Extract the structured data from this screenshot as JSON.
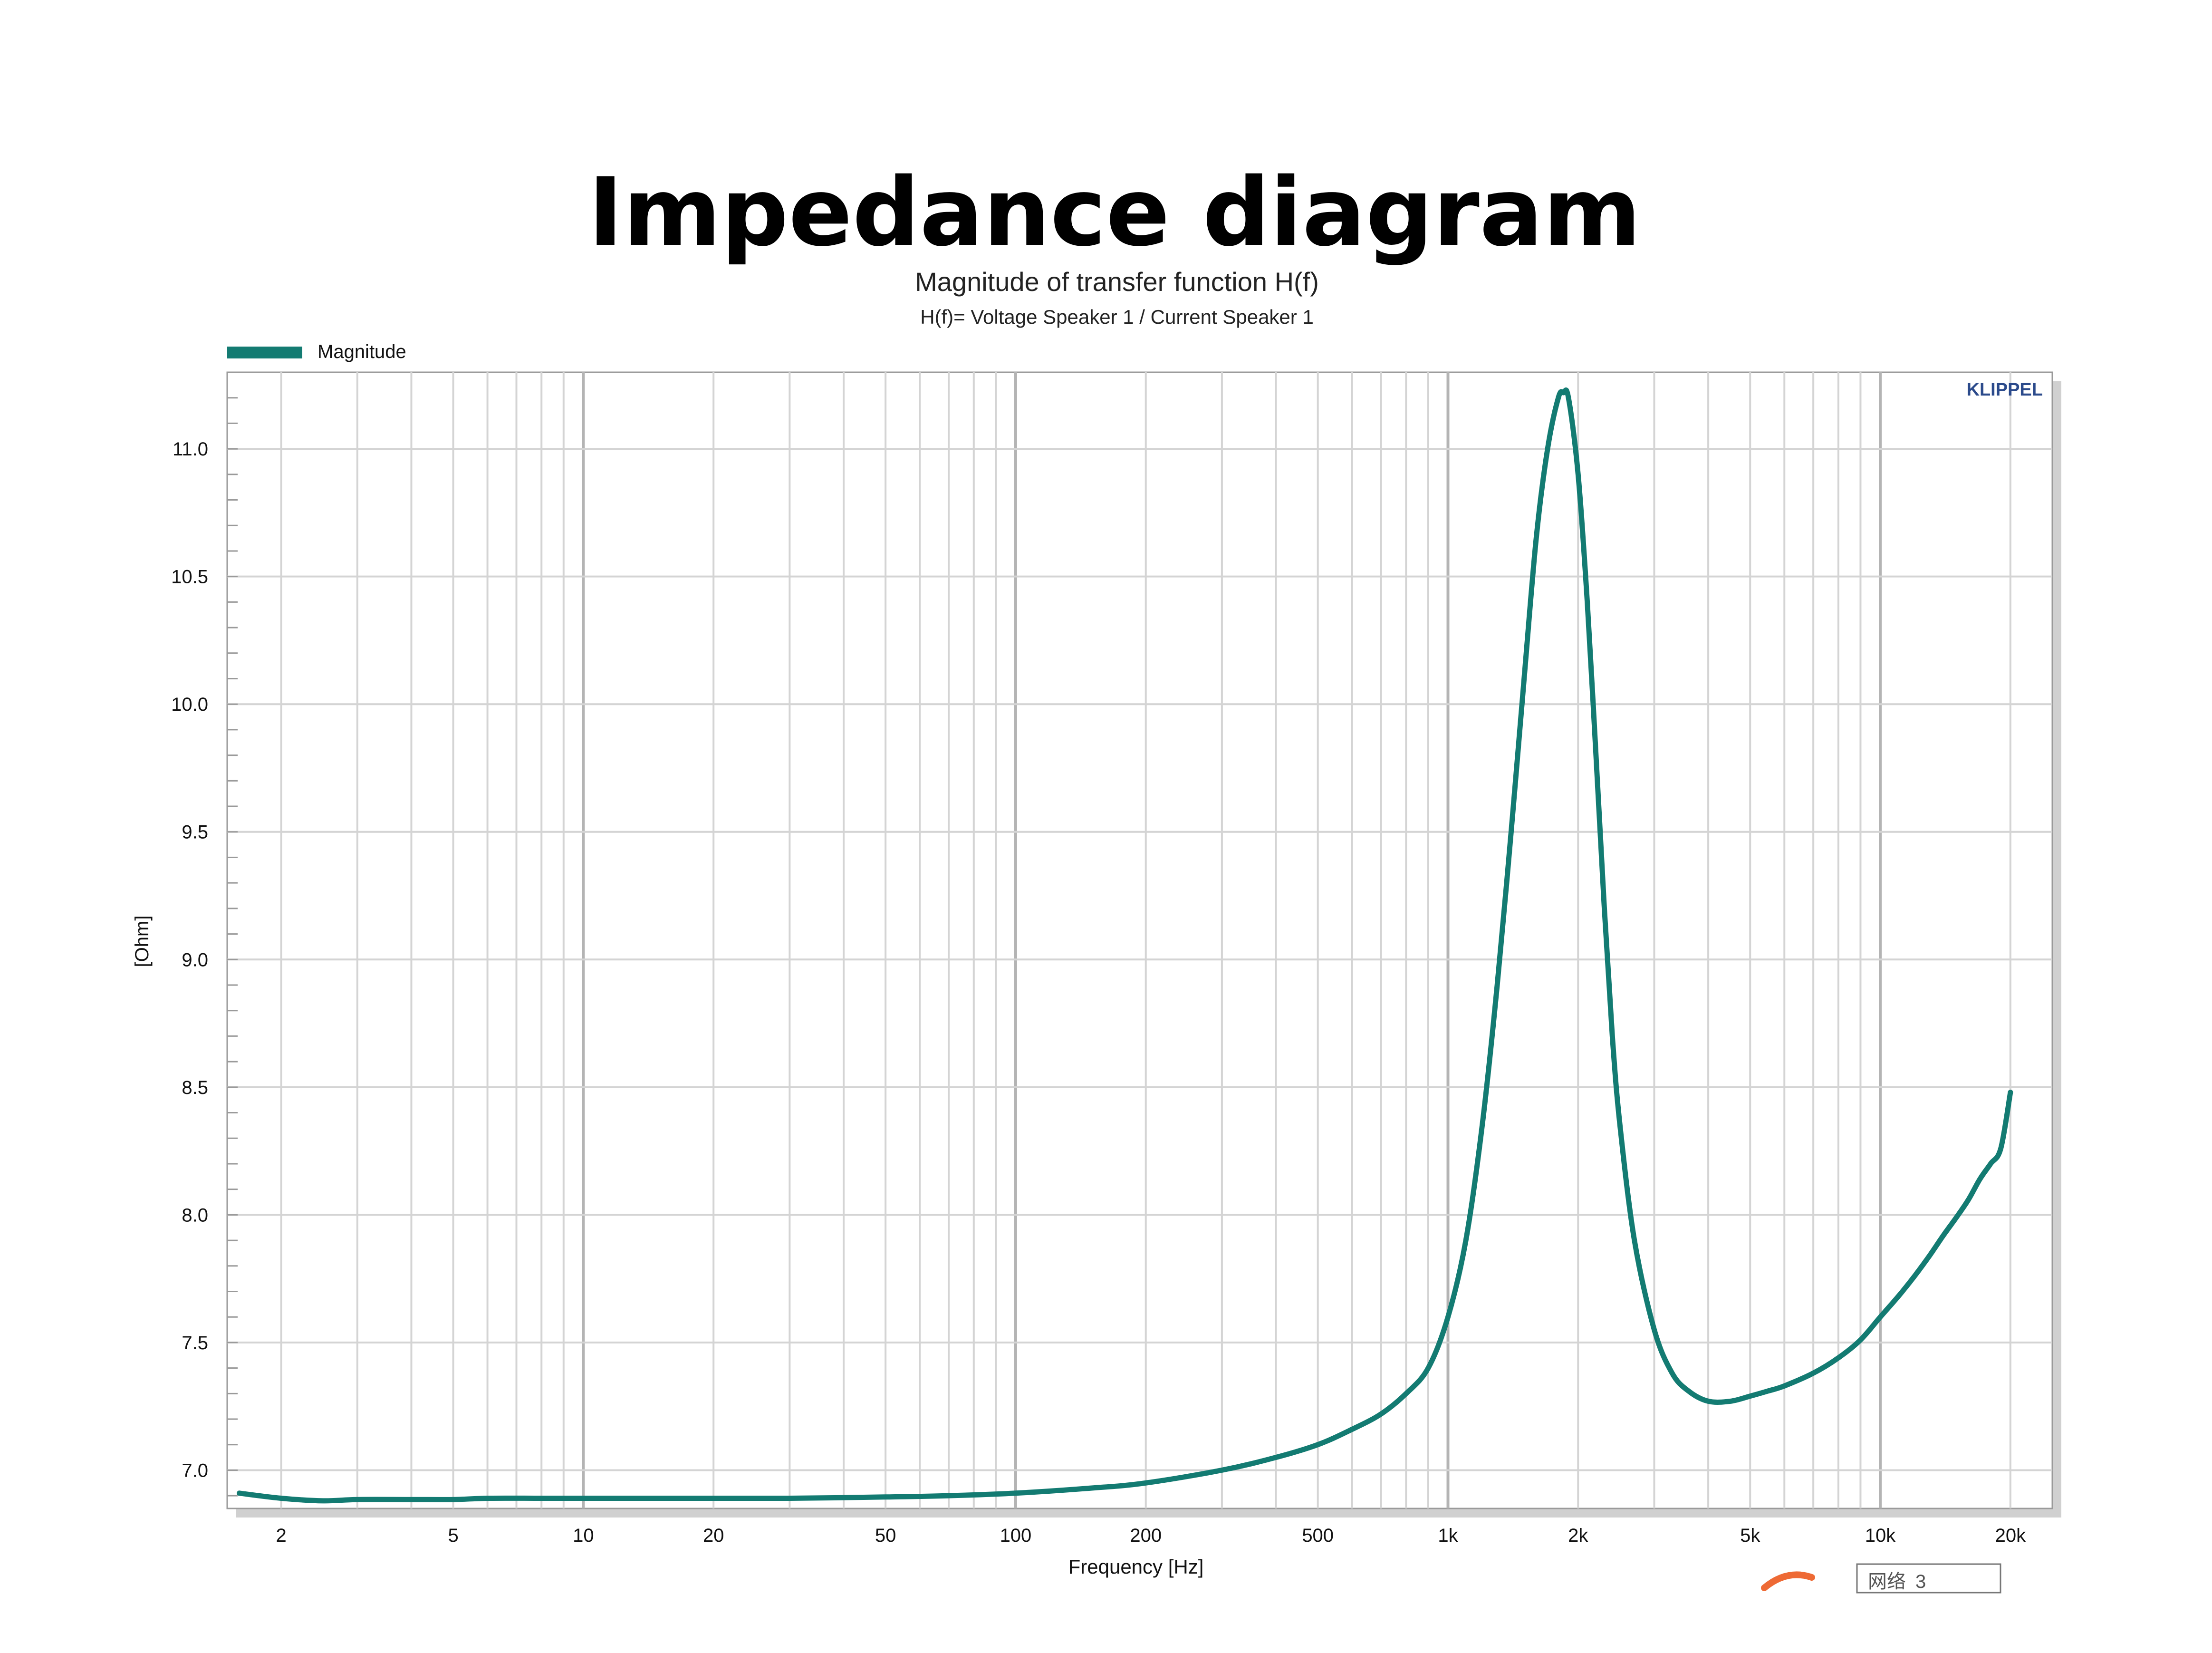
{
  "page": {
    "heading": "Impedance diagram"
  },
  "brand": {
    "logo_text": "KLIPPEL",
    "logo_color": "#2b4a8b"
  },
  "colors": {
    "series": "#137b72",
    "grid": "#d4d4d4",
    "grid_decade": "#b4b4b4",
    "text": "#111111"
  },
  "overlay": {
    "input_label": "网络",
    "input_value": "3"
  },
  "chart_data": {
    "type": "line",
    "title": "Magnitude of transfer function H(f)",
    "subtitle": "H(f)= Voltage Speaker 1 / Current Speaker 1",
    "xlabel": "Frequency [Hz]",
    "ylabel": "[Ohm]",
    "x_scale": "log",
    "xlim": [
      1.5,
      25000
    ],
    "ylim": [
      6.85,
      11.3
    ],
    "grid": true,
    "legend_position": "top-left",
    "x_ticks": [
      {
        "value": 2,
        "label": "2"
      },
      {
        "value": 5,
        "label": "5"
      },
      {
        "value": 10,
        "label": "10"
      },
      {
        "value": 20,
        "label": "20"
      },
      {
        "value": 50,
        "label": "50"
      },
      {
        "value": 100,
        "label": "100"
      },
      {
        "value": 200,
        "label": "200"
      },
      {
        "value": 500,
        "label": "500"
      },
      {
        "value": 1000,
        "label": "1k"
      },
      {
        "value": 2000,
        "label": "2k"
      },
      {
        "value": 5000,
        "label": "5k"
      },
      {
        "value": 10000,
        "label": "10k"
      },
      {
        "value": 20000,
        "label": "20k"
      }
    ],
    "y_ticks": [
      {
        "value": 7.0,
        "label": "7.0"
      },
      {
        "value": 7.5,
        "label": "7.5"
      },
      {
        "value": 8.0,
        "label": "8.0"
      },
      {
        "value": 8.5,
        "label": "8.5"
      },
      {
        "value": 9.0,
        "label": "9.0"
      },
      {
        "value": 9.5,
        "label": "9.5"
      },
      {
        "value": 10.0,
        "label": "10.0"
      },
      {
        "value": 10.5,
        "label": "10.5"
      },
      {
        "value": 11.0,
        "label": "11.0"
      }
    ],
    "series": [
      {
        "name": "Magnitude",
        "x": [
          1.6,
          2,
          2.5,
          3,
          4,
          5,
          6,
          8,
          10,
          15,
          20,
          30,
          50,
          70,
          100,
          150,
          200,
          300,
          400,
          500,
          600,
          700,
          800,
          900,
          1000,
          1100,
          1200,
          1300,
          1400,
          1500,
          1600,
          1700,
          1800,
          1850,
          1900,
          2000,
          2100,
          2200,
          2300,
          2400,
          2500,
          2700,
          3000,
          3300,
          3600,
          4000,
          4500,
          5000,
          5500,
          6000,
          7000,
          8000,
          9000,
          10000,
          11000,
          12000,
          13000,
          14000,
          15000,
          16000,
          17000,
          18000,
          19000,
          20000
        ],
        "y": [
          6.91,
          6.89,
          6.88,
          6.885,
          6.885,
          6.885,
          6.89,
          6.89,
          6.89,
          6.89,
          6.89,
          6.89,
          6.895,
          6.9,
          6.91,
          6.93,
          6.95,
          7.0,
          7.05,
          7.1,
          7.16,
          7.22,
          7.3,
          7.4,
          7.6,
          7.9,
          8.35,
          8.9,
          9.5,
          10.1,
          10.65,
          11.0,
          11.2,
          11.22,
          11.2,
          10.9,
          10.4,
          9.8,
          9.2,
          8.7,
          8.35,
          7.9,
          7.55,
          7.38,
          7.31,
          7.27,
          7.27,
          7.29,
          7.31,
          7.33,
          7.38,
          7.44,
          7.51,
          7.6,
          7.68,
          7.76,
          7.84,
          7.92,
          7.99,
          8.06,
          8.14,
          8.2,
          8.26,
          8.48
        ]
      }
    ]
  }
}
